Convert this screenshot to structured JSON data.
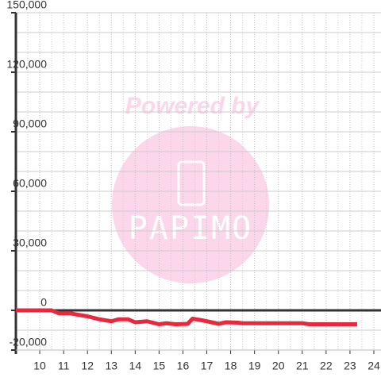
{
  "chart_data": {
    "type": "line",
    "watermark_text": "Powered by",
    "watermark_logo": "PAPIMO",
    "series": [
      {
        "color": "#e8283c",
        "x": [
          9.0,
          10.5,
          10.8,
          11.3,
          11.5,
          12,
          12.5,
          13,
          13.3,
          13.7,
          14,
          14.5,
          15,
          15.3,
          15.7,
          16.2,
          16.4,
          16.8,
          17.2,
          17.5,
          17.8,
          18.3,
          18.5,
          19,
          21,
          21.3,
          23.3
        ],
        "values": [
          0,
          0,
          -1500,
          -1500,
          -2000,
          -3000,
          -4500,
          -5500,
          -4500,
          -4500,
          -6000,
          -5500,
          -7000,
          -6500,
          -7000,
          -6800,
          -4200,
          -5000,
          -6000,
          -6800,
          -6000,
          -6200,
          -6500,
          -6500,
          -6500,
          -7000,
          -7000
        ]
      }
    ],
    "xlim": [
      9,
      24.3
    ],
    "xticks": [
      10,
      11,
      12,
      13,
      14,
      15,
      16,
      17,
      18,
      19,
      20,
      21,
      22,
      23,
      24
    ],
    "minor_xticks": [
      9.5,
      10.5,
      11.5,
      12.5,
      13.5,
      14.5,
      15.5,
      16.5,
      17.5,
      18.5,
      19.5,
      20.5,
      21.5,
      22.5,
      23.5
    ],
    "ylim": [
      -20000,
      150000
    ],
    "yticks": [
      {
        "value": -20000,
        "label": "-20,000"
      },
      0,
      {
        "value": 30000,
        "label": "30,000"
      },
      {
        "value": 60000,
        "label": "60,000"
      },
      {
        "value": 90000,
        "label": "90,000"
      },
      {
        "value": 120000,
        "label": "120,000"
      },
      {
        "value": 150000,
        "label": "150,000"
      }
    ],
    "minor_yticks": [
      -10000,
      10000,
      20000,
      40000,
      50000,
      70000,
      80000,
      100000,
      110000,
      130000,
      140000
    ],
    "grid": true
  }
}
